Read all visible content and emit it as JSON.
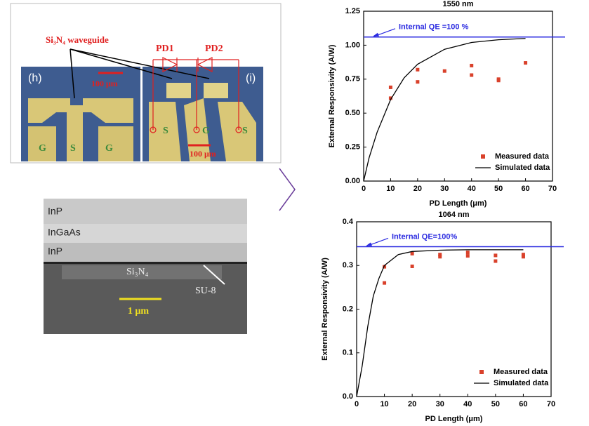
{
  "figures": {
    "micrograph": {
      "waveguide_label": "Si₃N₄ waveguide",
      "panel_h": "(h)",
      "panel_i": "(i)",
      "pd1": "PD1",
      "pd2": "PD2",
      "scale_h": "100 μm",
      "scale_i": "100 μm",
      "pads_h": [
        "G",
        "S",
        "G"
      ],
      "pads_i": [
        "S",
        "G",
        "S"
      ]
    },
    "sem": {
      "layers": [
        "InP",
        "InGaAs",
        "InP"
      ],
      "core": "Si₃N₄",
      "cladding": "SU-8",
      "scale": "1 μm"
    }
  },
  "chart_data": [
    {
      "type": "scatter",
      "title": "1550 nm",
      "x_label": "PD Length (μm)",
      "y_label": "External Responsivity (A/W)",
      "xlim": [
        0,
        70
      ],
      "xticks": [
        0,
        10,
        20,
        30,
        40,
        50,
        60,
        70
      ],
      "ylim": [
        0,
        1.25
      ],
      "yticks": [
        {
          "value": 0,
          "label": "0.00"
        },
        {
          "value": 0.25,
          "label": "0.25"
        },
        {
          "value": 0.5,
          "label": "0.50"
        },
        {
          "value": 0.75,
          "label": "0.75"
        },
        {
          "value": 1,
          "label": "1.00"
        },
        {
          "value": 1.25,
          "label": "1.25"
        }
      ],
      "reference_line": {
        "label": "Internal QE =100 %",
        "value": 1.06,
        "color": "#2a2ae0"
      },
      "legend": "lower right",
      "series": [
        {
          "name": "Measured data",
          "color": "#d9412b",
          "marker": "square",
          "x": [
            10,
            10,
            20,
            20,
            30,
            40,
            40,
            50,
            50,
            60
          ],
          "values": [
            0.69,
            0.61,
            0.82,
            0.73,
            0.81,
            0.85,
            0.78,
            0.75,
            0.74,
            0.87
          ]
        },
        {
          "name": "Simulated data",
          "color": "#000000",
          "marker": "line",
          "x": [
            0,
            2,
            5,
            10,
            15,
            20,
            30,
            40,
            50,
            60
          ],
          "values": [
            0,
            0.17,
            0.36,
            0.6,
            0.76,
            0.86,
            0.97,
            1.02,
            1.04,
            1.05
          ]
        }
      ]
    },
    {
      "type": "scatter",
      "title": "1064 nm",
      "x_label": "PD Length (μm)",
      "y_label": "External Responsivity (A/W)",
      "xlim": [
        0,
        70
      ],
      "xticks": [
        0,
        10,
        20,
        30,
        40,
        50,
        60,
        70
      ],
      "ylim": [
        0,
        0.4
      ],
      "yticks": [
        {
          "value": 0,
          "label": "0.0"
        },
        {
          "value": 0.1,
          "label": "0.1"
        },
        {
          "value": 0.2,
          "label": "0.2"
        },
        {
          "value": 0.3,
          "label": "0.3"
        },
        {
          "value": 0.4,
          "label": "0.4"
        }
      ],
      "reference_line": {
        "label": "Internal QE=100%",
        "value": 0.343,
        "color": "#2a2ae0"
      },
      "legend": "lower right",
      "series": [
        {
          "name": "Measured data",
          "color": "#d9412b",
          "marker": "square",
          "x": [
            10,
            10,
            20,
            20,
            30,
            30,
            40,
            40,
            50,
            50,
            60,
            60
          ],
          "values": [
            0.297,
            0.26,
            0.327,
            0.298,
            0.325,
            0.32,
            0.33,
            0.322,
            0.323,
            0.31,
            0.325,
            0.32
          ]
        },
        {
          "name": "Simulated data",
          "color": "#000000",
          "marker": "line",
          "x": [
            0,
            2,
            4,
            6,
            8,
            10,
            15,
            20,
            30,
            40,
            50,
            60
          ],
          "values": [
            0,
            0.07,
            0.16,
            0.23,
            0.27,
            0.3,
            0.325,
            0.332,
            0.335,
            0.336,
            0.336,
            0.336
          ]
        }
      ]
    }
  ]
}
